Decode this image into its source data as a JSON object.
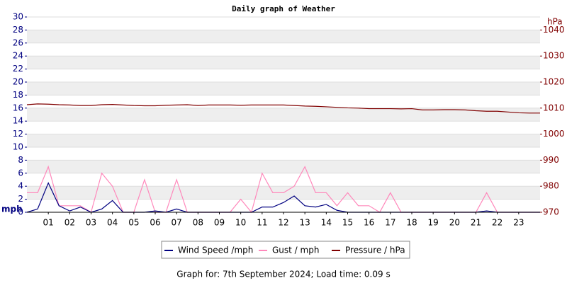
{
  "chart_data": {
    "type": "line",
    "title": "Daily graph of Weather",
    "ylabel": "mph",
    "y2label": "hPa",
    "footer": "Graph for: 7th September 2024; Load time: 0.09 s",
    "xlim": [
      0,
      24
    ],
    "xticks": [
      {
        "value": 1,
        "label": "01"
      },
      {
        "value": 2,
        "label": "02"
      },
      {
        "value": 3,
        "label": "03"
      },
      {
        "value": 4,
        "label": "04"
      },
      {
        "value": 5,
        "label": "05"
      },
      {
        "value": 6,
        "label": "06"
      },
      {
        "value": 7,
        "label": "07"
      },
      {
        "value": 8,
        "label": "08"
      },
      {
        "value": 9,
        "label": "09"
      },
      {
        "value": 10,
        "label": "10"
      },
      {
        "value": 11,
        "label": "11"
      },
      {
        "value": 12,
        "label": "12"
      },
      {
        "value": 13,
        "label": "13"
      },
      {
        "value": 14,
        "label": "14"
      },
      {
        "value": 15,
        "label": "15"
      },
      {
        "value": 16,
        "label": "16"
      },
      {
        "value": 17,
        "label": "17"
      },
      {
        "value": 18,
        "label": "18"
      },
      {
        "value": 19,
        "label": "19"
      },
      {
        "value": 20,
        "label": "20"
      },
      {
        "value": 21,
        "label": "21"
      },
      {
        "value": 22,
        "label": "22"
      },
      {
        "value": 23,
        "label": "23"
      }
    ],
    "ylim": [
      0,
      30
    ],
    "yticks": [
      0,
      2,
      4,
      6,
      8,
      10,
      12,
      14,
      16,
      18,
      20,
      22,
      24,
      26,
      28,
      30
    ],
    "y2lim": [
      970,
      1045
    ],
    "y2ticks": [
      970,
      980,
      990,
      1000,
      1010,
      1020,
      1030,
      1040
    ],
    "grid": true,
    "legend": "bottom",
    "x": [
      0,
      0.5,
      1,
      1.5,
      2,
      2.5,
      3,
      3.5,
      4,
      4.5,
      5,
      5.5,
      6,
      6.5,
      7,
      7.5,
      8,
      8.5,
      9,
      9.5,
      10,
      10.5,
      11,
      11.5,
      12,
      12.5,
      13,
      13.5,
      14,
      14.5,
      15,
      15.5,
      16,
      16.5,
      17,
      17.5,
      18,
      18.5,
      19,
      19.5,
      20,
      20.5,
      21,
      21.5,
      22,
      22.5,
      23,
      23.5,
      24
    ],
    "series": [
      {
        "name": "Wind Speed /mph",
        "color": "#000080",
        "values": [
          0,
          0.5,
          4.5,
          1,
          0.2,
          0.8,
          0,
          0.5,
          1.8,
          0,
          0,
          0,
          0.2,
          0,
          0.5,
          0,
          0,
          0,
          0,
          0,
          0,
          0,
          0.8,
          0.8,
          1.5,
          2.5,
          1,
          0.8,
          1.2,
          0.3,
          0,
          0,
          0,
          0,
          0,
          0,
          0,
          0,
          0,
          0,
          0,
          0,
          0,
          0.2,
          0,
          0,
          0,
          0,
          0
        ]
      },
      {
        "name": "Gust / mph",
        "color": "#ff88bb",
        "values": [
          3,
          3,
          7,
          1,
          1,
          1,
          0,
          6,
          4,
          0,
          0,
          5,
          0,
          0,
          5,
          0,
          0,
          0,
          0,
          0,
          2,
          0,
          6,
          3,
          3,
          4,
          7,
          3,
          3,
          1,
          3,
          1,
          1,
          0,
          3,
          0,
          0,
          0,
          0,
          0,
          0,
          0,
          0,
          3,
          0,
          0,
          0,
          0,
          0
        ]
      },
      {
        "name": "Pressure / hPa",
        "color": "#800000",
        "axis": "y2",
        "values": [
          1011.3,
          1011.6,
          1011.5,
          1011.3,
          1011.2,
          1011,
          1011,
          1011.3,
          1011.4,
          1011.2,
          1011,
          1010.9,
          1010.9,
          1011.1,
          1011.2,
          1011.3,
          1011,
          1011.2,
          1011.2,
          1011.2,
          1011.1,
          1011.2,
          1011.2,
          1011.2,
          1011.2,
          1011,
          1010.8,
          1010.7,
          1010.5,
          1010.3,
          1010.1,
          1010,
          1009.8,
          1009.8,
          1009.8,
          1009.7,
          1009.8,
          1009.3,
          1009.3,
          1009.4,
          1009.4,
          1009.3,
          1009,
          1008.8,
          1008.8,
          1008.5,
          1008.2,
          1008.1,
          1008.1
        ]
      }
    ]
  }
}
